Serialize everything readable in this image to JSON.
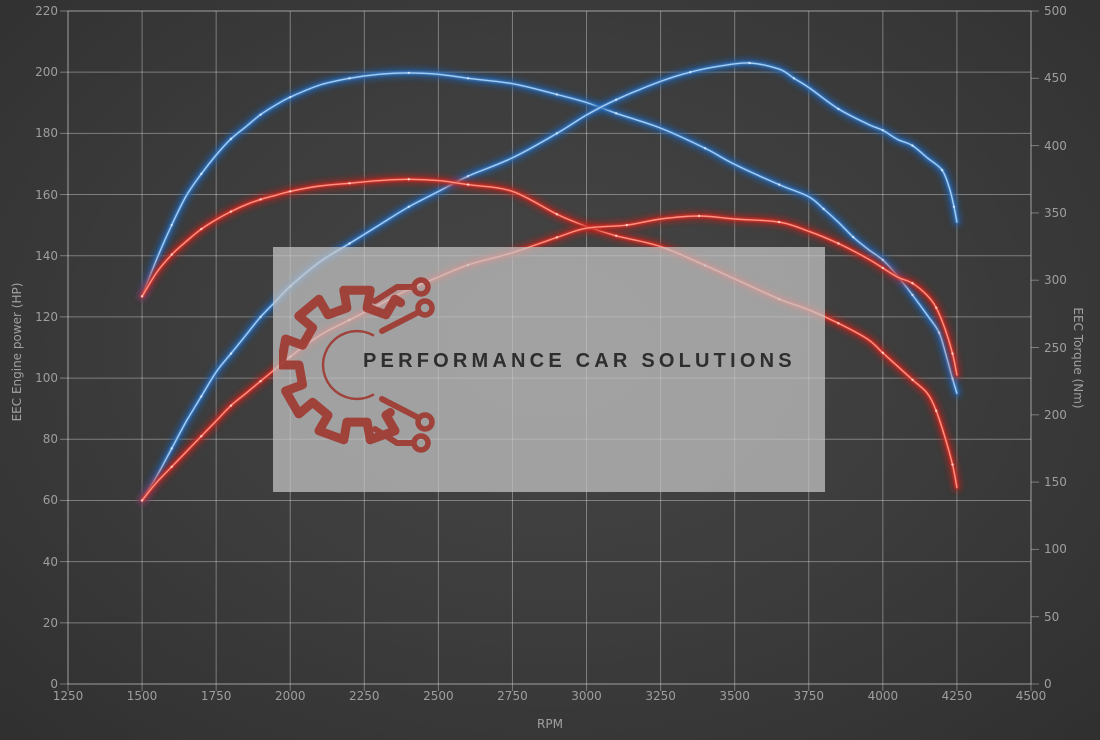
{
  "chart": {
    "xlabel": "RPM",
    "ylabel_left": "EEC Engine power (HP)",
    "ylabel_right": "EEC Torque (Nm)",
    "watermark": {
      "text": "PERFORMANCE CAR SOLUTIONS",
      "icon": "gear-circuit-icon",
      "logo_color": "#9e352c"
    }
  },
  "chart_data": {
    "type": "line",
    "title": "",
    "xlabel": "RPM",
    "grid": true,
    "legend": "none",
    "x_range": [
      1250,
      4500
    ],
    "x_ticks": [
      1250,
      1500,
      1750,
      2000,
      2250,
      2500,
      2750,
      3000,
      3250,
      3500,
      3750,
      4000,
      4250,
      4500
    ],
    "left_axis": {
      "label": "EEC Engine power (HP)",
      "range": [
        0,
        220
      ],
      "ticks": [
        0,
        20,
        40,
        60,
        80,
        100,
        120,
        140,
        160,
        180,
        200,
        220
      ]
    },
    "right_axis": {
      "label": "EEC Torque (Nm)",
      "range": [
        0,
        500
      ],
      "ticks": [
        0,
        50,
        100,
        150,
        200,
        250,
        300,
        350,
        400,
        450,
        500
      ]
    },
    "series": [
      {
        "name": "blue-torque-nm",
        "axis": "right",
        "unit": "Nm",
        "color": {
          "glow": "#1f5fae",
          "mid": "#3f85cf",
          "core": "#a6cdf2",
          "marker": "#d8eafc"
        },
        "peak": {
          "rpm": 2400,
          "value": 454
        },
        "points": [
          [
            1500,
            288
          ],
          [
            1550,
            316
          ],
          [
            1600,
            341
          ],
          [
            1650,
            363
          ],
          [
            1700,
            379
          ],
          [
            1750,
            393
          ],
          [
            1800,
            405
          ],
          [
            1850,
            414
          ],
          [
            1900,
            423
          ],
          [
            1950,
            430
          ],
          [
            2000,
            436
          ],
          [
            2100,
            445
          ],
          [
            2200,
            450
          ],
          [
            2300,
            453
          ],
          [
            2400,
            454
          ],
          [
            2500,
            453
          ],
          [
            2600,
            450
          ],
          [
            2750,
            446
          ],
          [
            2900,
            438
          ],
          [
            3000,
            432
          ],
          [
            3100,
            424
          ],
          [
            3250,
            413
          ],
          [
            3400,
            398
          ],
          [
            3500,
            386
          ],
          [
            3650,
            371
          ],
          [
            3750,
            362
          ],
          [
            3800,
            353
          ],
          [
            3850,
            343
          ],
          [
            3900,
            332
          ],
          [
            3950,
            323
          ],
          [
            4000,
            315
          ],
          [
            4050,
            303
          ],
          [
            4100,
            289
          ],
          [
            4150,
            274
          ],
          [
            4190,
            261
          ],
          [
            4215,
            243
          ],
          [
            4235,
            227
          ],
          [
            4250,
            216
          ]
        ]
      },
      {
        "name": "blue-power-hp",
        "axis": "left",
        "unit": "HP",
        "color": {
          "glow": "#1f5fae",
          "mid": "#3f85cf",
          "core": "#a6cdf2",
          "marker": "#d8eafc"
        },
        "peak": {
          "rpm": 3550,
          "value": 203
        },
        "points": [
          [
            1500,
            60
          ],
          [
            1550,
            68
          ],
          [
            1600,
            77
          ],
          [
            1650,
            86
          ],
          [
            1700,
            94
          ],
          [
            1750,
            102
          ],
          [
            1800,
            108
          ],
          [
            1850,
            114
          ],
          [
            1900,
            120
          ],
          [
            1950,
            125
          ],
          [
            2000,
            130
          ],
          [
            2100,
            138
          ],
          [
            2200,
            144
          ],
          [
            2300,
            150
          ],
          [
            2400,
            156
          ],
          [
            2500,
            161
          ],
          [
            2600,
            166
          ],
          [
            2750,
            172
          ],
          [
            2900,
            180
          ],
          [
            3000,
            186
          ],
          [
            3100,
            191
          ],
          [
            3250,
            197
          ],
          [
            3350,
            200
          ],
          [
            3450,
            202
          ],
          [
            3550,
            203
          ],
          [
            3650,
            201
          ],
          [
            3700,
            198
          ],
          [
            3750,
            195
          ],
          [
            3850,
            188
          ],
          [
            3950,
            183
          ],
          [
            4000,
            181
          ],
          [
            4050,
            178
          ],
          [
            4100,
            176
          ],
          [
            4150,
            172
          ],
          [
            4200,
            168
          ],
          [
            4225,
            162
          ],
          [
            4240,
            156
          ],
          [
            4250,
            151
          ]
        ]
      },
      {
        "name": "red-torque-nm",
        "axis": "right",
        "unit": "Nm",
        "color": {
          "glow": "#b3241c",
          "mid": "#e1352a",
          "core": "#ff9384",
          "marker": "#ffd9d2"
        },
        "peak": {
          "rpm": 2400,
          "value": 375
        },
        "points": [
          [
            1500,
            288
          ],
          [
            1550,
            306
          ],
          [
            1600,
            319
          ],
          [
            1650,
            329
          ],
          [
            1700,
            338
          ],
          [
            1750,
            345
          ],
          [
            1800,
            351
          ],
          [
            1850,
            356
          ],
          [
            1900,
            360
          ],
          [
            1950,
            363
          ],
          [
            2000,
            366
          ],
          [
            2100,
            370
          ],
          [
            2200,
            372
          ],
          [
            2300,
            374
          ],
          [
            2400,
            375
          ],
          [
            2500,
            374
          ],
          [
            2600,
            371
          ],
          [
            2750,
            366
          ],
          [
            2900,
            349
          ],
          [
            3000,
            340
          ],
          [
            3100,
            333
          ],
          [
            3250,
            325
          ],
          [
            3400,
            311
          ],
          [
            3500,
            301
          ],
          [
            3650,
            286
          ],
          [
            3750,
            278
          ],
          [
            3850,
            268
          ],
          [
            3950,
            256
          ],
          [
            4000,
            246
          ],
          [
            4050,
            236
          ],
          [
            4100,
            226
          ],
          [
            4150,
            216
          ],
          [
            4180,
            203
          ],
          [
            4210,
            183
          ],
          [
            4235,
            163
          ],
          [
            4250,
            146
          ]
        ]
      },
      {
        "name": "red-power-hp",
        "axis": "left",
        "unit": "HP",
        "color": {
          "glow": "#b3241c",
          "mid": "#e1352a",
          "core": "#ff9384",
          "marker": "#ffd9d2"
        },
        "peak": {
          "rpm": 3380,
          "value": 153
        },
        "points": [
          [
            1500,
            60
          ],
          [
            1550,
            66
          ],
          [
            1600,
            71
          ],
          [
            1650,
            76
          ],
          [
            1700,
            81
          ],
          [
            1750,
            86
          ],
          [
            1800,
            91
          ],
          [
            1850,
            95
          ],
          [
            1900,
            99
          ],
          [
            1950,
            103
          ],
          [
            2000,
            107
          ],
          [
            2100,
            114
          ],
          [
            2200,
            119
          ],
          [
            2300,
            124
          ],
          [
            2400,
            129
          ],
          [
            2500,
            133
          ],
          [
            2600,
            137
          ],
          [
            2750,
            141
          ],
          [
            2900,
            146
          ],
          [
            3000,
            149
          ],
          [
            3136,
            150
          ],
          [
            3250,
            152
          ],
          [
            3380,
            153
          ],
          [
            3500,
            152
          ],
          [
            3650,
            151
          ],
          [
            3750,
            148
          ],
          [
            3850,
            144
          ],
          [
            3950,
            139
          ],
          [
            4000,
            136
          ],
          [
            4050,
            133
          ],
          [
            4100,
            131
          ],
          [
            4150,
            127
          ],
          [
            4180,
            123
          ],
          [
            4210,
            116
          ],
          [
            4235,
            108
          ],
          [
            4250,
            101
          ]
        ]
      }
    ]
  }
}
